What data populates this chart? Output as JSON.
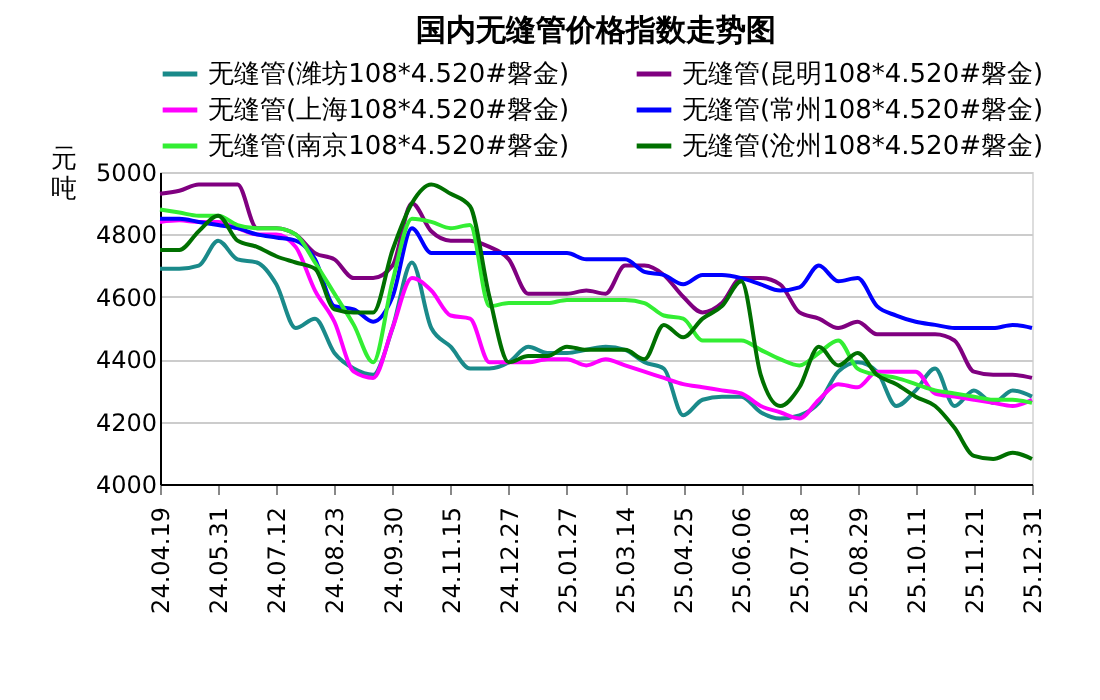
{
  "chart_data": {
    "type": "line",
    "title": "国内无缝管价格指数走势图",
    "ylabel": "元吨",
    "categories": [
      "24.04.19",
      null,
      null,
      "24.05.31",
      null,
      null,
      "24.07.12",
      null,
      null,
      "24.08.23",
      null,
      null,
      "24.09.30",
      null,
      null,
      "24.11.15",
      null,
      null,
      "24.12.27",
      null,
      null,
      "25.01.27",
      null,
      null,
      "25.03.14",
      null,
      null,
      "25.04.25",
      null,
      null,
      "25.06.06",
      null,
      null,
      "25.07.18",
      null,
      null,
      "25.08.29",
      null,
      null,
      "25.10.11",
      null,
      null,
      "25.11.21",
      null,
      null,
      "25.12.31"
    ],
    "series": [
      {
        "name": "无缝管(潍坊108*4.520#磐金)",
        "color": "#1a8a8a",
        "values": [
          4690,
          4690,
          4700,
          4780,
          4720,
          4710,
          4640,
          4500,
          4530,
          4420,
          4370,
          4350,
          4500,
          4710,
          4500,
          4440,
          4370,
          4370,
          4390,
          4440,
          4420,
          4420,
          4430,
          4440,
          4430,
          4390,
          4370,
          4220,
          4270,
          4280,
          4280,
          4230,
          4210,
          4220,
          4260,
          4360,
          4390,
          4360,
          4250,
          4300,
          4370,
          4250,
          4300,
          4260,
          4300,
          4280
        ]
      },
      {
        "name": "无缝管(昆明108*4.520#磐金)",
        "color": "#800080",
        "values": [
          4930,
          4940,
          4960,
          4960,
          4960,
          4820,
          4820,
          4800,
          4740,
          4720,
          4660,
          4660,
          4700,
          4900,
          4810,
          4780,
          4780,
          4760,
          4720,
          4610,
          4610,
          4610,
          4620,
          4610,
          4700,
          4700,
          4670,
          4600,
          4550,
          4580,
          4660,
          4660,
          4640,
          4550,
          4530,
          4500,
          4520,
          4480,
          4480,
          4480,
          4480,
          4460,
          4360,
          4350,
          4350,
          4340
        ]
      },
      {
        "name": "无缝管(上海108*4.520#磐金)",
        "color": "#ff00ff",
        "values": [
          4840,
          4845,
          4840,
          4840,
          4820,
          4800,
          4800,
          4760,
          4620,
          4520,
          4360,
          4340,
          4500,
          4660,
          4620,
          4540,
          4530,
          4390,
          4390,
          4390,
          4400,
          4400,
          4380,
          4400,
          4380,
          4360,
          4340,
          4320,
          4310,
          4300,
          4290,
          4250,
          4230,
          4210,
          4270,
          4320,
          4310,
          4360,
          4360,
          4360,
          4290,
          4280,
          4270,
          4260,
          4250,
          4270
        ]
      },
      {
        "name": "无缝管(常州108*4.520#磐金)",
        "color": "#0000ff",
        "values": [
          4850,
          4850,
          4840,
          4830,
          4820,
          4800,
          4790,
          4780,
          4720,
          4570,
          4560,
          4520,
          4600,
          4820,
          4740,
          4740,
          4740,
          4740,
          4740,
          4740,
          4740,
          4740,
          4720,
          4720,
          4720,
          4680,
          4670,
          4640,
          4670,
          4670,
          4660,
          4640,
          4620,
          4630,
          4700,
          4650,
          4660,
          4570,
          4540,
          4520,
          4510,
          4500,
          4500,
          4500,
          4510,
          4500
        ]
      },
      {
        "name": "无缝管(南京108*4.520#磐金)",
        "color": "#33ee33",
        "values": [
          4880,
          4870,
          4860,
          4860,
          4830,
          4820,
          4820,
          4800,
          4710,
          4610,
          4510,
          4390,
          4650,
          4850,
          4840,
          4820,
          4830,
          4570,
          4580,
          4580,
          4580,
          4590,
          4590,
          4590,
          4590,
          4580,
          4540,
          4530,
          4460,
          4460,
          4460,
          4430,
          4400,
          4380,
          4420,
          4460,
          4370,
          4350,
          4340,
          4320,
          4300,
          4290,
          4280,
          4270,
          4270,
          4260
        ]
      },
      {
        "name": "无缝管(沧州108*4.520#磐金)",
        "color": "#007000",
        "values": [
          4750,
          4750,
          4810,
          4860,
          4780,
          4760,
          4730,
          4710,
          4690,
          4560,
          4550,
          4550,
          4750,
          4900,
          4960,
          4930,
          4890,
          4600,
          4390,
          4410,
          4410,
          4440,
          4430,
          4430,
          4430,
          4400,
          4510,
          4470,
          4530,
          4570,
          4650,
          4350,
          4250,
          4310,
          4440,
          4380,
          4420,
          4350,
          4320,
          4280,
          4250,
          4180,
          4090,
          4080,
          4100,
          4080
        ]
      }
    ],
    "ylim": [
      4000,
      5000
    ],
    "yticks": [
      4000,
      4200,
      4400,
      4600,
      4800,
      5000
    ],
    "grid": "y",
    "legend": "top",
    "marker": "none",
    "line_style": "solid"
  }
}
